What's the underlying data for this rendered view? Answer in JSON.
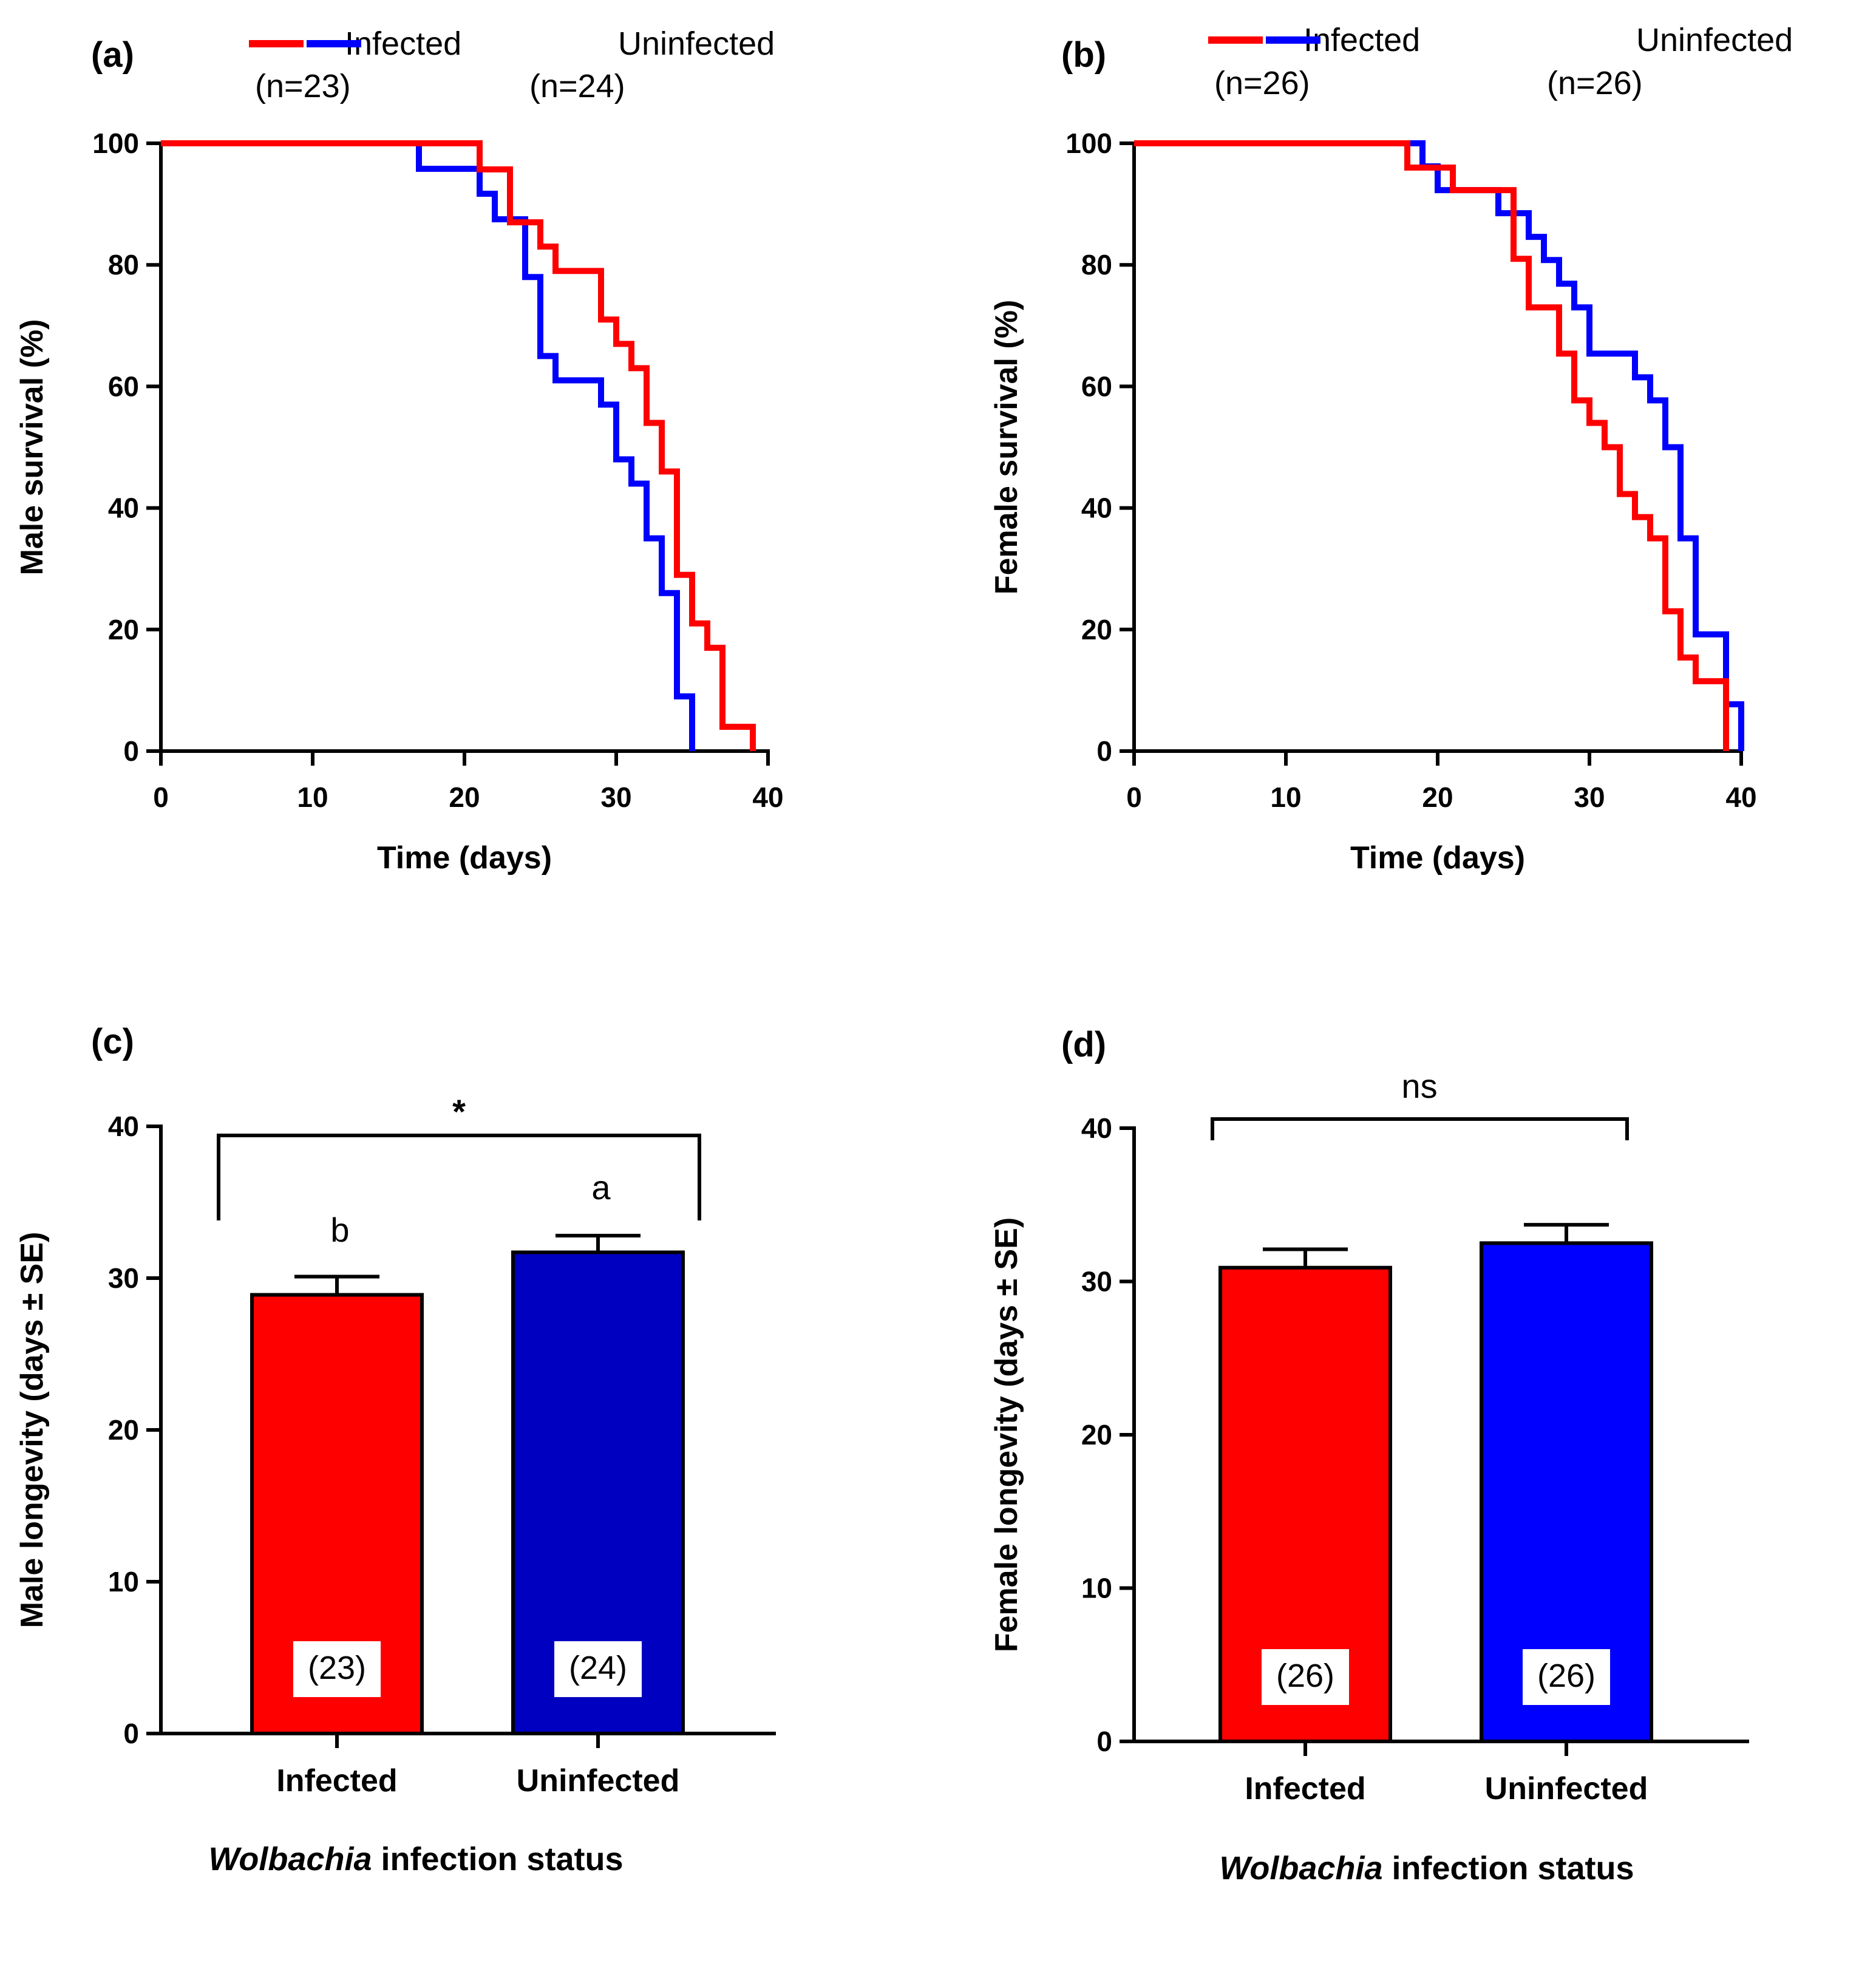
{
  "chart_data": [
    {
      "panel": "(a)",
      "type": "line",
      "step": true,
      "xlabel": "Time (days)",
      "ylabel": "Male survival (%)",
      "xlim": [
        0,
        40
      ],
      "ylim": [
        0,
        100
      ],
      "xticks": [
        0,
        10,
        20,
        30,
        40
      ],
      "yticks": [
        0,
        20,
        40,
        60,
        80,
        100
      ],
      "series": [
        {
          "name": "Infected",
          "n_label": "(n=23)",
          "color": "#ff0000",
          "x": [
            0,
            21,
            23,
            24,
            25,
            26,
            29,
            30,
            31,
            32,
            33,
            34,
            35,
            36,
            37,
            38,
            39
          ],
          "y": [
            100,
            95.7,
            87,
            87,
            83,
            79,
            71,
            67,
            63,
            54,
            46,
            29,
            21,
            17,
            4,
            4,
            0
          ]
        },
        {
          "name": "Uninfected",
          "n_label": "(n=24)",
          "color": "#0000ff",
          "x": [
            0,
            17,
            21,
            22,
            24,
            25,
            26,
            29,
            30,
            31,
            32,
            33,
            34,
            35
          ],
          "y": [
            100,
            95.8,
            91.7,
            87.5,
            78,
            65,
            61,
            57,
            48,
            44,
            35,
            26,
            9,
            0
          ]
        }
      ]
    },
    {
      "panel": "(b)",
      "type": "line",
      "step": true,
      "xlabel": "Time (days)",
      "ylabel": "Female survival (%)",
      "xlim": [
        0,
        40
      ],
      "ylim": [
        0,
        100
      ],
      "xticks": [
        0,
        10,
        20,
        30,
        40
      ],
      "yticks": [
        0,
        20,
        40,
        60,
        80,
        100
      ],
      "series": [
        {
          "name": "Infected",
          "n_label": "(n=26)",
          "color": "#ff0000",
          "x": [
            0,
            18,
            21,
            25,
            26,
            28,
            29,
            30,
            31,
            32,
            33,
            34,
            35,
            36,
            37,
            39
          ],
          "y": [
            100,
            96,
            92.3,
            81,
            73,
            65.4,
            57.7,
            54,
            50,
            42.3,
            38.5,
            35,
            23,
            15.4,
            11.5,
            0
          ]
        },
        {
          "name": "Uninfected",
          "n_label": "(n=26)",
          "color": "#0000ff",
          "x": [
            0,
            19,
            20,
            24,
            26,
            27,
            28,
            29,
            30,
            31,
            33,
            34,
            35,
            36,
            37,
            39,
            40
          ],
          "y": [
            100,
            96.2,
            92.3,
            88.5,
            84.6,
            80.8,
            76.9,
            73,
            65.4,
            65.4,
            61.5,
            57.7,
            50,
            35,
            19.2,
            7.7,
            0
          ]
        }
      ]
    },
    {
      "panel": "(c)",
      "type": "bar",
      "ylabel": "Male longevity (days ± SE)",
      "xlabel_italic": "Wolbachia",
      "xlabel_rest": " infection status",
      "categories": [
        "Infected",
        "Uninfected"
      ],
      "values": [
        28.9,
        31.7
      ],
      "errors": [
        1.2,
        1.1
      ],
      "colors": [
        "#ff0000",
        "#0000c0"
      ],
      "n_labels": [
        "(23)",
        "(24)"
      ],
      "letters": [
        "b",
        "a"
      ],
      "significance": "*",
      "ylim": [
        0,
        40
      ],
      "yticks": [
        0,
        10,
        20,
        30,
        40
      ]
    },
    {
      "panel": "(d)",
      "type": "bar",
      "ylabel": "Female longevity (days ± SE)",
      "xlabel_italic": "Wolbachia",
      "xlabel_rest": " infection status",
      "categories": [
        "Infected",
        "Uninfected"
      ],
      "values": [
        30.9,
        32.5
      ],
      "errors": [
        1.2,
        1.2
      ],
      "colors": [
        "#ff0000",
        "#0000ff"
      ],
      "n_labels": [
        "(26)",
        "(26)"
      ],
      "letters": [
        "",
        ""
      ],
      "significance": "ns",
      "ylim": [
        0,
        40
      ],
      "yticks": [
        0,
        10,
        20,
        30,
        40
      ]
    }
  ]
}
